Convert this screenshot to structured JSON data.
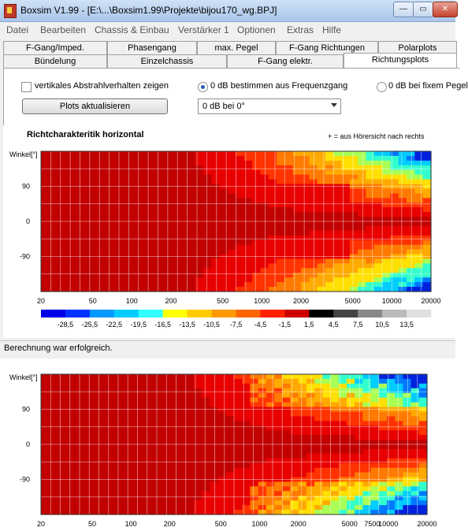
{
  "window": {
    "title": "Boxsim V1.99 - [E:\\...\\Boxsim1.99\\Projekte\\bijou170_wg.BPJ]",
    "min_glyph": "—",
    "max_glyph": "▭",
    "close_glyph": "✕"
  },
  "menu": [
    "Datei",
    "Bearbeiten",
    "Chassis & Einbau",
    "Verstärker 1",
    "Optionen",
    "Extras",
    "Hilfe"
  ],
  "tabs_row1": [
    "F-Gang/Imped.",
    "Phasengang",
    "max. Pegel",
    "F-Gang Richtungen",
    "Polarplots"
  ],
  "tabs_row2": [
    "Bündelung",
    "Einzelchassis",
    "F-Gang elektr.",
    "Richtungsplots"
  ],
  "active_tab": "Richtungsplots",
  "controls": {
    "checkbox_label": "vertikales Abstrahlverhalten zeigen",
    "checkbox_checked": false,
    "radio1_label": "0 dB bestimmen aus Frequenzgang",
    "radio1_selected": true,
    "radio2_label": "0 dB bei fixem Pegel",
    "radio2_selected": false,
    "update_button": "Plots aktualisieren",
    "combo_value": "0 dB bei 0°"
  },
  "plot": {
    "title": "Richtcharakteritik horizontal",
    "note": "+ = aus Hörersicht nach rechts",
    "ylabel": "Winkel[°]",
    "y_ticks": [
      "90",
      "0",
      "-90"
    ],
    "x_ticks": [
      "20",
      "50",
      "100",
      "200",
      "500",
      "1000",
      "2000",
      "5000",
      "10000",
      "20000"
    ],
    "colorbar_labels": [
      "-28,5",
      "-25,5",
      "-22,5",
      "-19,5",
      "-16,5",
      "-13,5",
      "-10,5",
      "-7,5",
      "-4,5",
      "-1,5",
      "1,5",
      "4,5",
      "7,5",
      "10,5",
      "13,5"
    ],
    "colorbar_colors": [
      "#0000e6",
      "#0033ff",
      "#0099ff",
      "#00ccff",
      "#33ffff",
      "#ffff00",
      "#ffcc00",
      "#ff9900",
      "#ff6600",
      "#ff2200",
      "#cc0000",
      "#000000",
      "#444444",
      "#888888",
      "#bbbbbb",
      "#e0e0e0"
    ]
  },
  "status_text": "Berechnung war erfolgreich.",
  "plot2": {
    "ylabel": "Winkel[°]",
    "y_ticks": [
      "90",
      "0",
      "-90"
    ],
    "x_ticks": [
      "20",
      "50",
      "100",
      "200",
      "500",
      "1000",
      "2000",
      "5000",
      "7500",
      "10000",
      "20000"
    ]
  }
}
